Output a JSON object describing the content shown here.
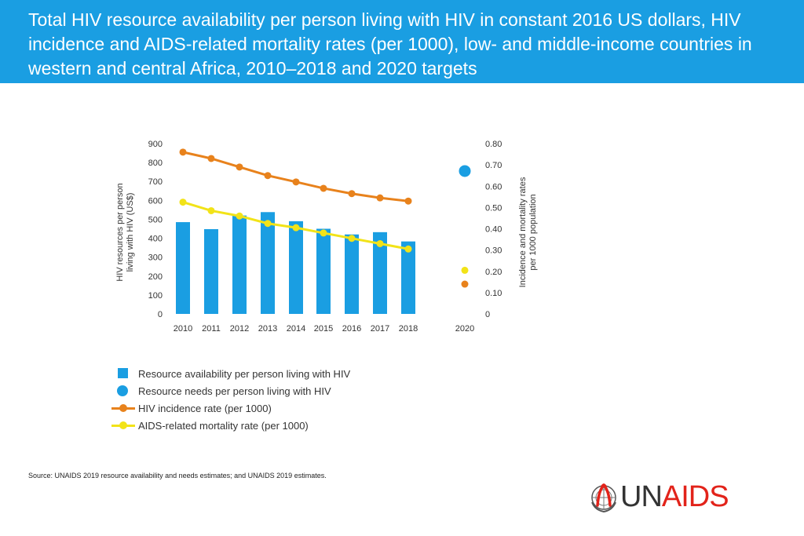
{
  "title": "Total HIV resource availability per person living with HIV in constant 2016 US dollars, HIV incidence and AIDS-related mortality rates (per 1000), low- and middle-income countries in western and central Africa, 2010–2018 and 2020 targets",
  "chart_data": {
    "type": "bar",
    "categories": [
      "2010",
      "2011",
      "2012",
      "2013",
      "2014",
      "2015",
      "2016",
      "2017",
      "2018",
      "2020"
    ],
    "left_axis": {
      "label_line1": "HIV resources per person",
      "label_line2": "living with HIV (US$)",
      "ylim": [
        0,
        900
      ],
      "ticks": [
        "0",
        "100",
        "200",
        "300",
        "400",
        "500",
        "600",
        "700",
        "800",
        "900"
      ]
    },
    "right_axis": {
      "label_line1": "Incidence and mortality rates",
      "label_line2": "per 1000 population",
      "ylim": [
        0,
        0.8
      ],
      "ticks": [
        "0",
        "0.10",
        "0.20",
        "0.30",
        "0.40",
        "0.50",
        "0.60",
        "0.70",
        "0.80"
      ]
    },
    "series": [
      {
        "name": "Resource availability per person living with HIV",
        "kind": "bar",
        "axis": "left",
        "color": "#1a9ee2",
        "values": [
          485,
          448,
          520,
          538,
          490,
          450,
          420,
          432,
          383,
          null
        ]
      },
      {
        "name": "Resource needs per person living with HIV",
        "kind": "point",
        "axis": "left",
        "color": "#1a9ee2",
        "values": [
          null,
          null,
          null,
          null,
          null,
          null,
          null,
          null,
          null,
          755
        ]
      },
      {
        "name": "HIV incidence rate (per 1000)",
        "kind": "line",
        "axis": "right",
        "color": "#e8821c",
        "values": [
          0.76,
          0.73,
          0.69,
          0.65,
          0.62,
          0.59,
          0.565,
          0.545,
          0.53,
          0.14
        ]
      },
      {
        "name": "AIDS-related mortality rate (per 1000)",
        "kind": "line",
        "axis": "right",
        "color": "#f2e318",
        "values": [
          0.525,
          0.485,
          0.46,
          0.425,
          0.405,
          0.38,
          0.355,
          0.33,
          0.305,
          0.205
        ]
      }
    ]
  },
  "legend": [
    {
      "label": "Resource availability per person living with HIV",
      "shape": "square",
      "color": "#1a9ee2"
    },
    {
      "label": "Resource needs per person living with HIV",
      "shape": "circle",
      "color": "#1a9ee2"
    },
    {
      "label": "HIV incidence rate (per 1000)",
      "shape": "line",
      "color": "#e8821c"
    },
    {
      "label": "AIDS-related mortality rate (per 1000)",
      "shape": "line",
      "color": "#f2e318"
    }
  ],
  "source": {
    "prefix": "Source:",
    "text": " UNAIDS 2019 resource availability and needs estimates; and UNAIDS 2019 estimates."
  },
  "logo": {
    "part1": "UN",
    "part2": "AIDS",
    "icon": "un-emblem-ribbon-icon"
  }
}
